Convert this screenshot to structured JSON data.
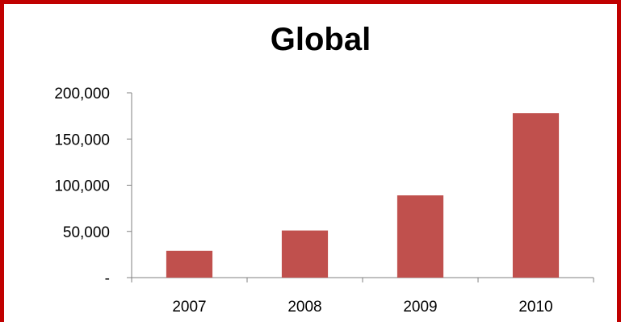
{
  "chart_data": {
    "type": "bar",
    "title": "Global",
    "categories": [
      "2007",
      "2008",
      "2009",
      "2010"
    ],
    "values": [
      29000,
      51000,
      89000,
      178000
    ],
    "ylim": [
      0,
      200000
    ],
    "yticks": [
      0,
      50000,
      100000,
      150000,
      200000
    ],
    "ytick_labels": [
      "-",
      "50,000",
      "100,000",
      "150,000",
      "200,000"
    ],
    "grid": false,
    "legend": "none",
    "bar_color": "#c0504d",
    "frame_color": "#c00000"
  }
}
